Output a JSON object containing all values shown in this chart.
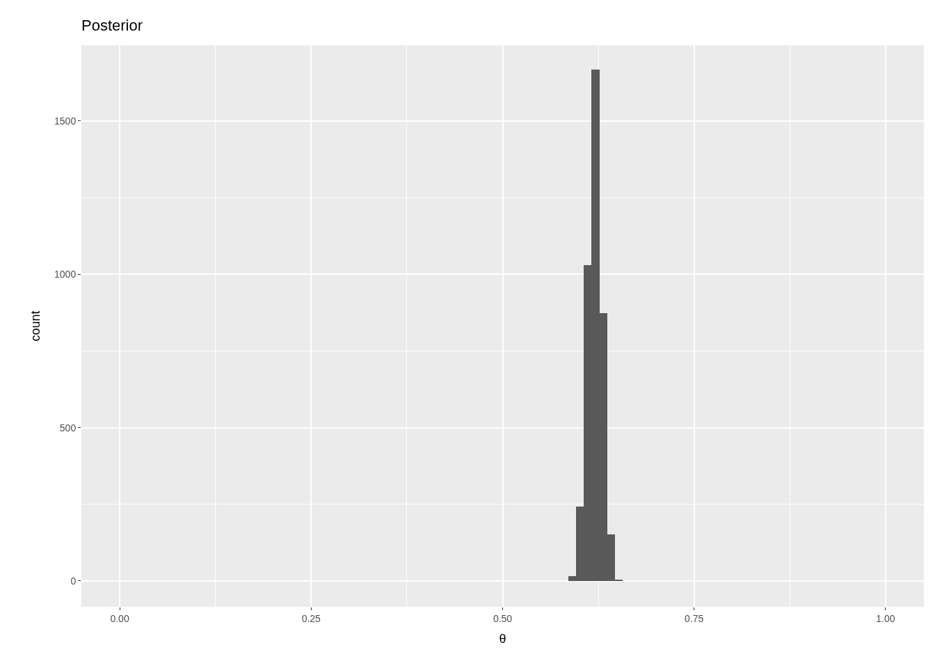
{
  "chart_data": {
    "type": "histogram",
    "title": "Posterior",
    "xlabel": "θ",
    "ylabel": "count",
    "bins": [
      0.586,
      0.596,
      0.606,
      0.616,
      0.627,
      0.637,
      0.647,
      0.657
    ],
    "values": [
      16,
      243,
      1030,
      1668,
      874,
      152,
      5
    ],
    "color": "#595959",
    "xlim": [
      -0.05,
      1.05
    ],
    "xticks": [
      {
        "value": 0,
        "label": "0.00"
      },
      {
        "value": 0.25,
        "label": "0.25"
      },
      {
        "value": 0.5,
        "label": "0.50"
      },
      {
        "value": 0.75,
        "label": "0.75"
      },
      {
        "value": 1,
        "label": "1.00"
      }
    ],
    "ylim": [
      -84,
      1747
    ],
    "yticks": [
      0,
      500,
      1000,
      1500
    ],
    "grid": true
  }
}
